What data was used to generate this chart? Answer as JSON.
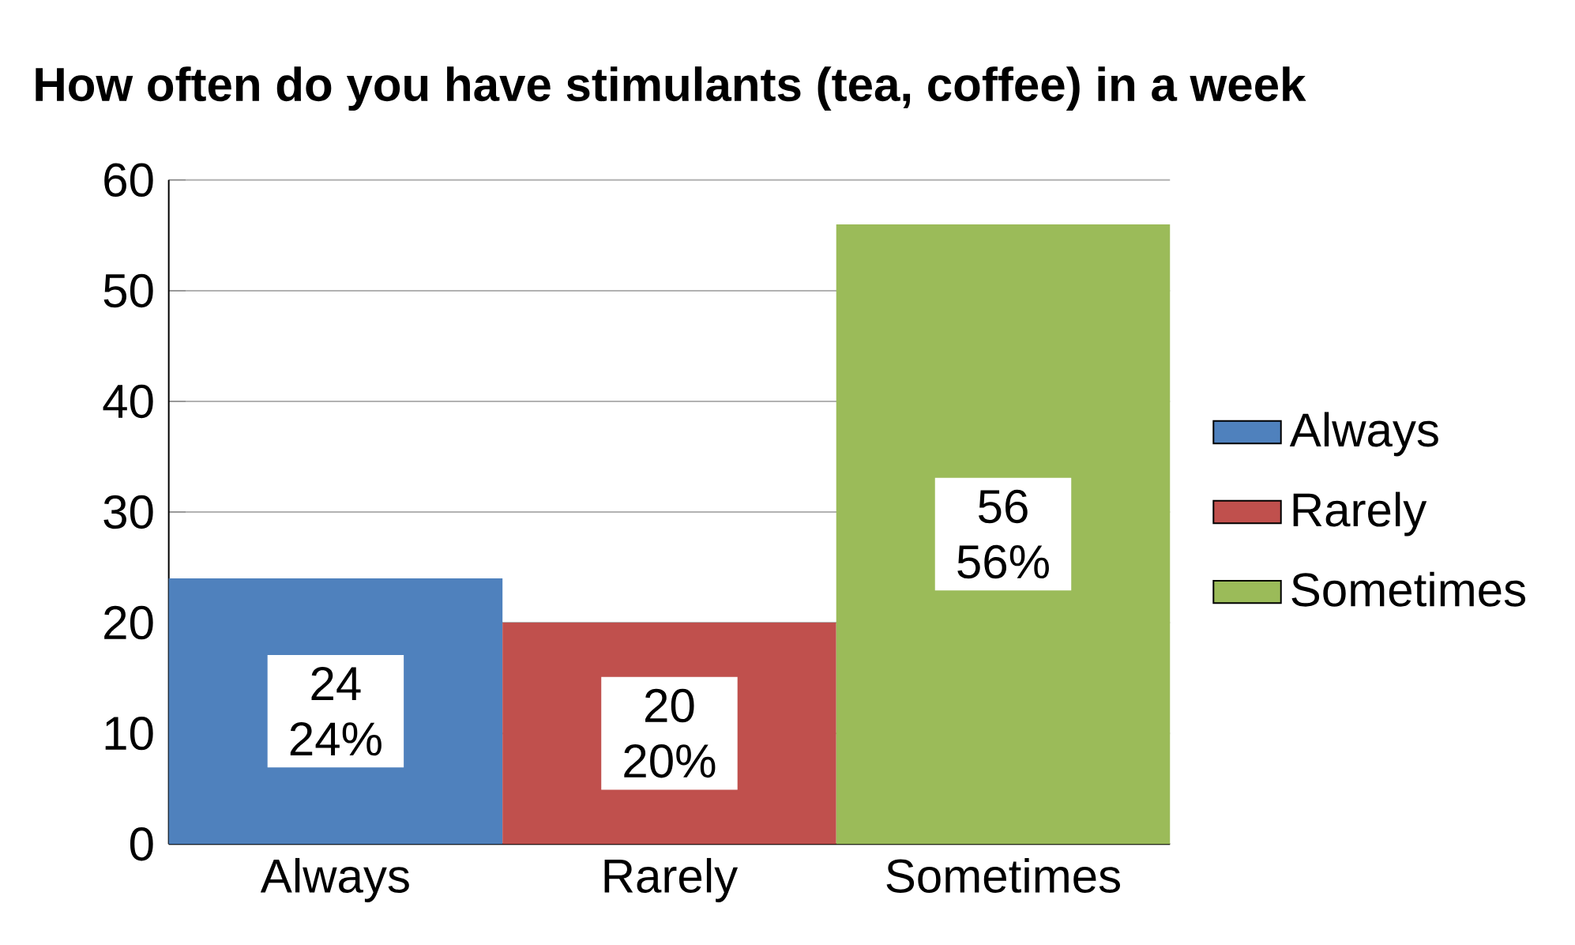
{
  "chart_data": {
    "type": "bar",
    "title": "How often do you have stimulants (tea, coffee) in a week",
    "categories": [
      "Always",
      "Rarely",
      "Sometimes"
    ],
    "series": [
      {
        "name": "Always",
        "color": "#4f81bd",
        "values": [
          24,
          null,
          null
        ],
        "value_labels": [
          "24 24%",
          null,
          null
        ]
      },
      {
        "name": "Rarely",
        "color": "#c0504d",
        "values": [
          null,
          20,
          null
        ],
        "value_labels": [
          null,
          "20 20%",
          null
        ]
      },
      {
        "name": "Sometimes",
        "color": "#9bbb59",
        "values": [
          null,
          null,
          56
        ],
        "value_labels": [
          null,
          null,
          "56 56%"
        ]
      }
    ],
    "ylim": [
      0,
      60
    ],
    "yticks": [
      0,
      10,
      20,
      30,
      40,
      50,
      60
    ],
    "grid": "y",
    "legend": "right"
  }
}
